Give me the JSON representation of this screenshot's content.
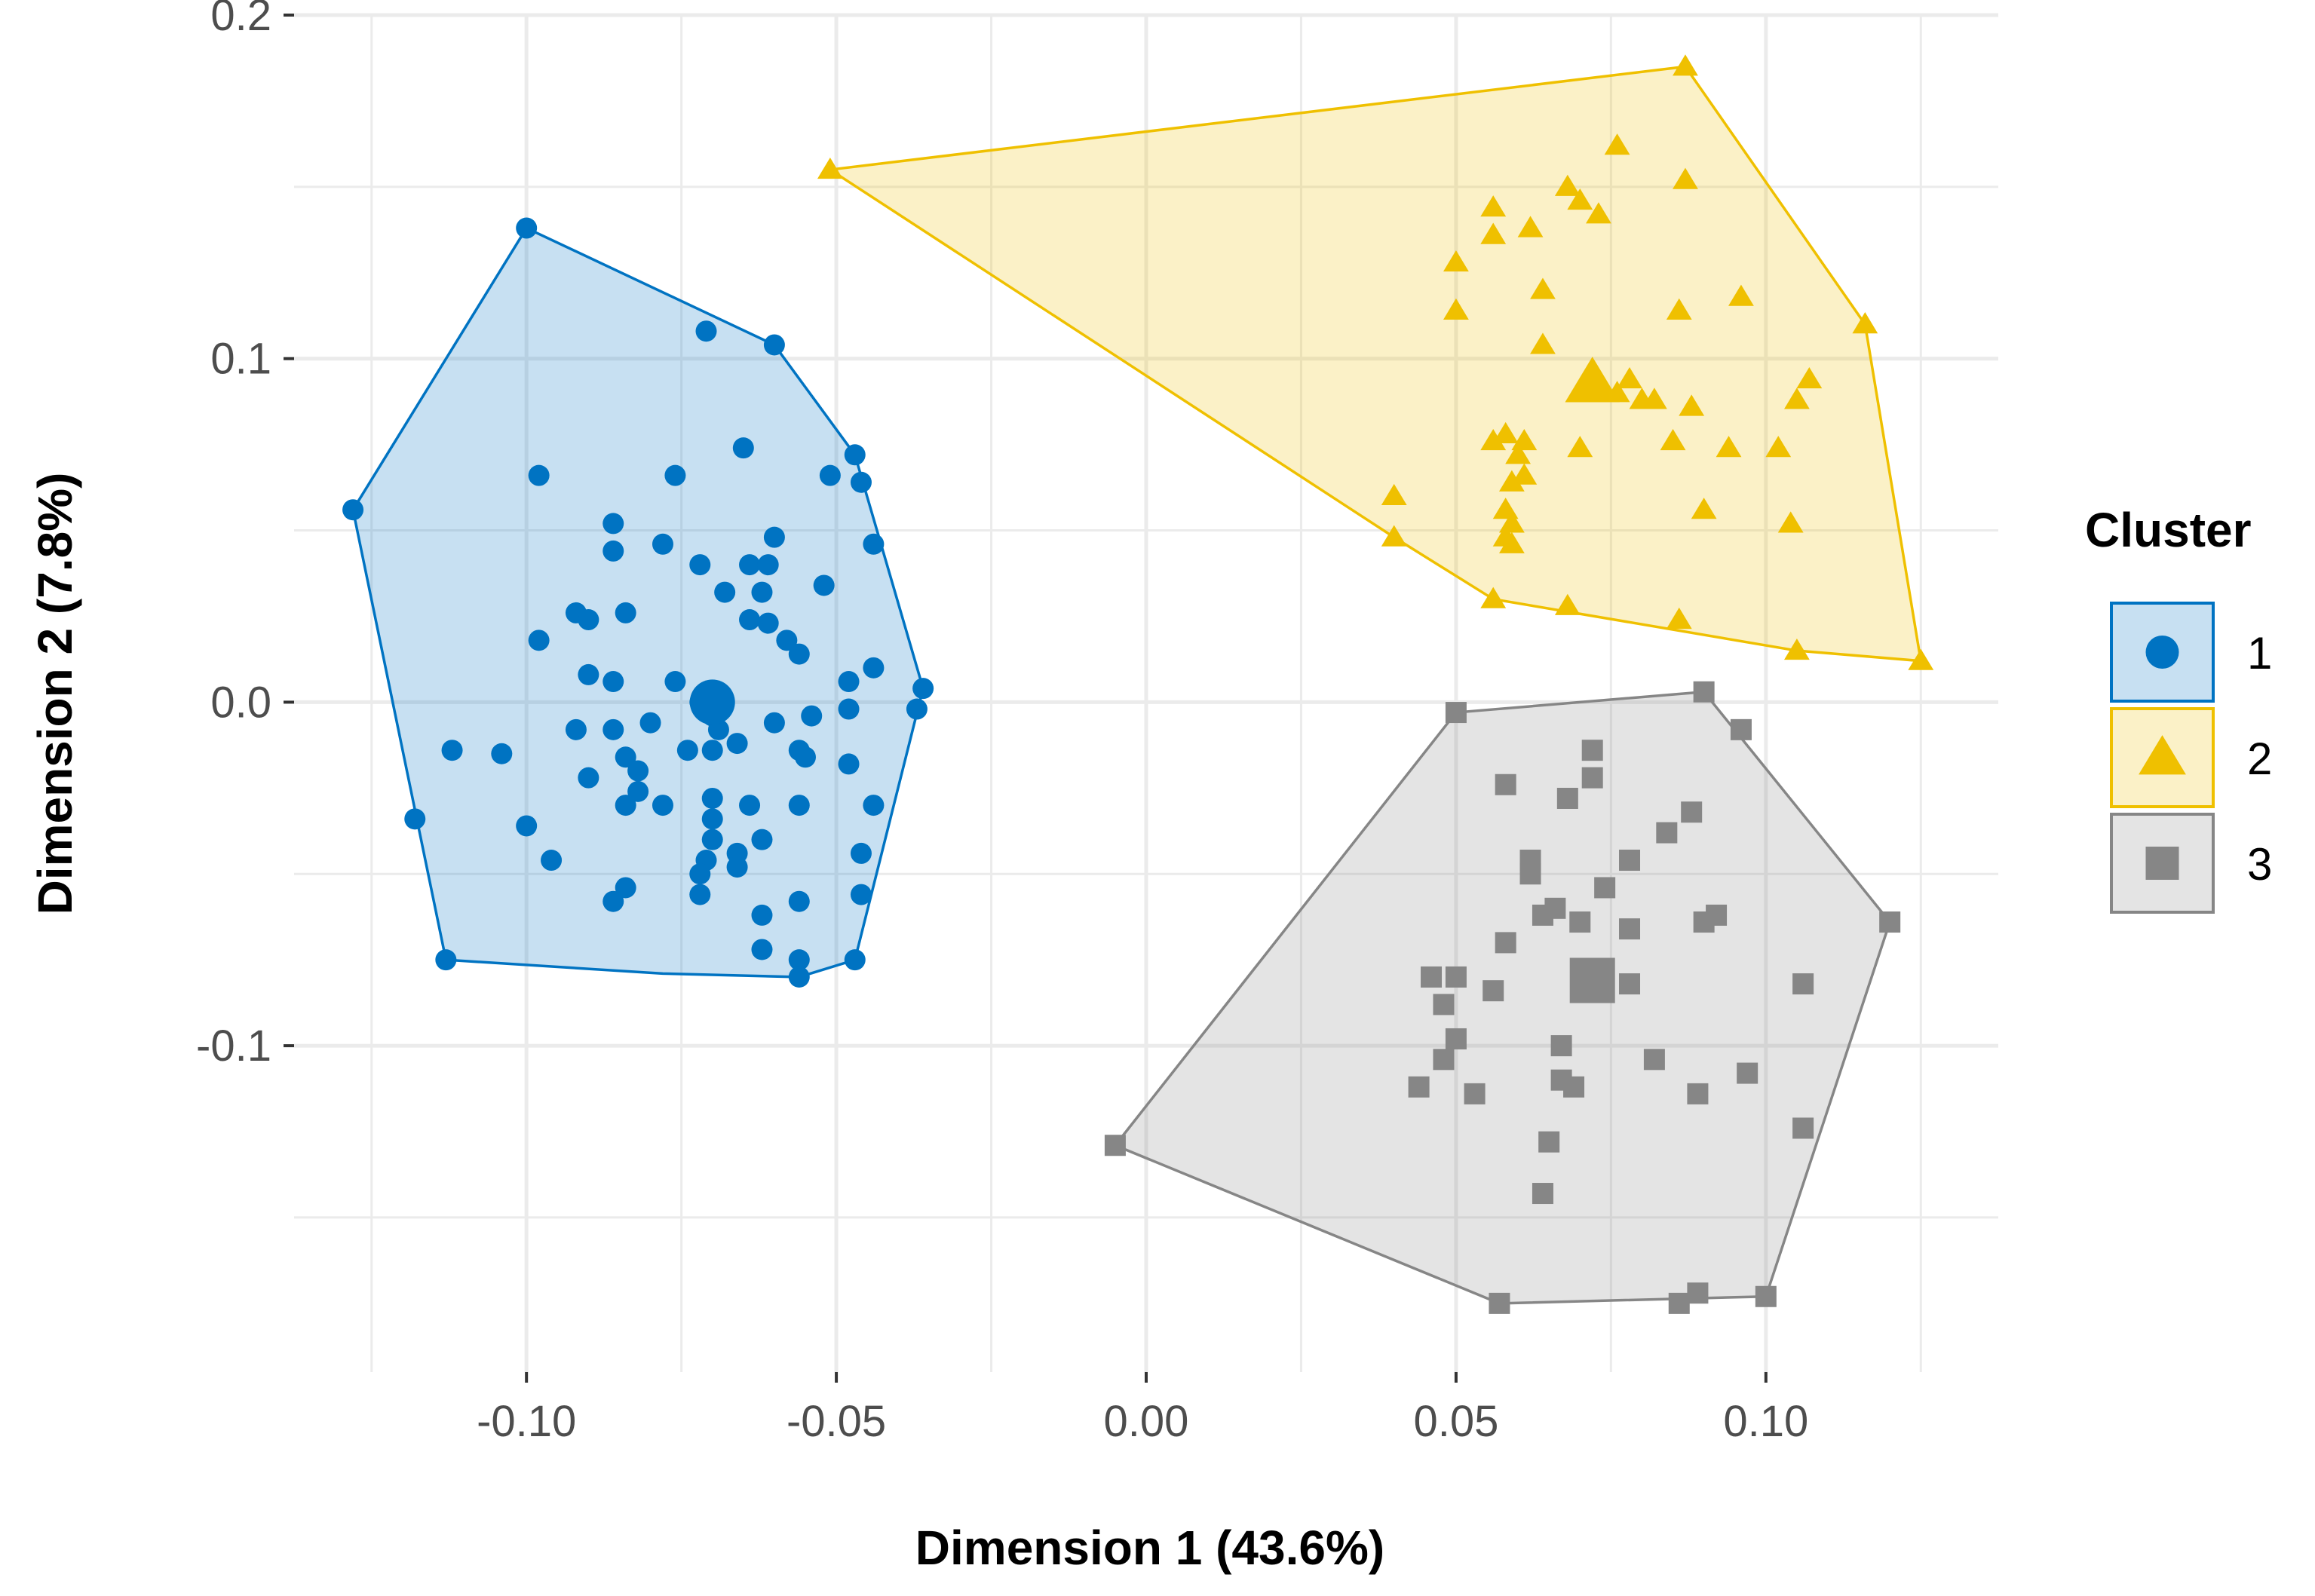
{
  "chart_data": {
    "type": "scatter",
    "title": "",
    "xlabel": "Dimension 1 (43.6%)",
    "ylabel": "Dimension 2 (7.8%)",
    "xlim": [
      -0.1375,
      0.1375
    ],
    "ylim": [
      -0.195,
      0.2
    ],
    "x_ticks": [
      -0.1,
      -0.05,
      0.0,
      0.05,
      0.1
    ],
    "x_tick_labels": [
      "-0.10",
      "-0.05",
      "0.00",
      "0.05",
      "0.10"
    ],
    "y_ticks": [
      -0.1,
      0.0,
      0.1,
      0.2
    ],
    "y_tick_labels": [
      "-0.1",
      "0.0",
      "0.1",
      "0.2"
    ],
    "grid": true,
    "legend": {
      "title": "Cluster",
      "position": "right"
    },
    "series": [
      {
        "name": "1",
        "color": "#0073C2",
        "fill": "#0073C2",
        "shape": "circle",
        "hull": [
          [
            -0.128,
            0.056
          ],
          [
            -0.1,
            0.138
          ],
          [
            -0.06,
            0.104
          ],
          [
            -0.047,
            0.072
          ],
          [
            -0.036,
            0.004
          ],
          [
            -0.047,
            -0.075
          ],
          [
            -0.056,
            -0.08
          ],
          [
            -0.078,
            -0.079
          ],
          [
            -0.113,
            -0.075
          ]
        ],
        "center": [
          -0.07,
          0.0
        ],
        "points": [
          [
            -0.128,
            0.056
          ],
          [
            -0.1,
            0.138
          ],
          [
            -0.06,
            0.104
          ],
          [
            -0.071,
            0.108
          ],
          [
            -0.047,
            0.072
          ],
          [
            -0.051,
            0.066
          ],
          [
            -0.046,
            0.064
          ],
          [
            -0.065,
            0.074
          ],
          [
            -0.076,
            0.066
          ],
          [
            -0.098,
            0.066
          ],
          [
            -0.086,
            0.052
          ],
          [
            -0.086,
            0.044
          ],
          [
            -0.078,
            0.046
          ],
          [
            -0.064,
            0.04
          ],
          [
            -0.06,
            0.048
          ],
          [
            -0.061,
            0.04
          ],
          [
            -0.068,
            0.032
          ],
          [
            -0.072,
            0.04
          ],
          [
            -0.062,
            0.032
          ],
          [
            -0.052,
            0.034
          ],
          [
            -0.044,
            0.046
          ],
          [
            -0.092,
            0.026
          ],
          [
            -0.09,
            0.024
          ],
          [
            -0.084,
            0.026
          ],
          [
            -0.064,
            0.024
          ],
          [
            -0.058,
            0.018
          ],
          [
            -0.061,
            0.023
          ],
          [
            -0.098,
            0.018
          ],
          [
            -0.056,
            0.014
          ],
          [
            -0.09,
            0.008
          ],
          [
            -0.086,
            0.006
          ],
          [
            -0.076,
            0.006
          ],
          [
            -0.048,
            0.006
          ],
          [
            -0.044,
            0.01
          ],
          [
            -0.036,
            0.004
          ],
          [
            -0.037,
            -0.002
          ],
          [
            -0.048,
            -0.002
          ],
          [
            -0.054,
            -0.004
          ],
          [
            -0.06,
            -0.006
          ],
          [
            -0.092,
            -0.008
          ],
          [
            -0.086,
            -0.008
          ],
          [
            -0.08,
            -0.006
          ],
          [
            -0.072,
            0.0
          ],
          [
            -0.07,
            -0.004
          ],
          [
            -0.069,
            -0.008
          ],
          [
            -0.066,
            -0.012
          ],
          [
            -0.07,
            -0.014
          ],
          [
            -0.074,
            -0.014
          ],
          [
            -0.056,
            -0.014
          ],
          [
            -0.048,
            -0.018
          ],
          [
            -0.055,
            -0.016
          ],
          [
            -0.112,
            -0.014
          ],
          [
            -0.104,
            -0.015
          ],
          [
            -0.084,
            -0.016
          ],
          [
            -0.082,
            -0.02
          ],
          [
            -0.09,
            -0.022
          ],
          [
            -0.082,
            -0.026
          ],
          [
            -0.084,
            -0.03
          ],
          [
            -0.078,
            -0.03
          ],
          [
            -0.07,
            -0.028
          ],
          [
            -0.07,
            -0.034
          ],
          [
            -0.064,
            -0.03
          ],
          [
            -0.056,
            -0.03
          ],
          [
            -0.044,
            -0.03
          ],
          [
            -0.118,
            -0.034
          ],
          [
            -0.1,
            -0.036
          ],
          [
            -0.062,
            -0.04
          ],
          [
            -0.07,
            -0.04
          ],
          [
            -0.066,
            -0.044
          ],
          [
            -0.071,
            -0.046
          ],
          [
            -0.072,
            -0.05
          ],
          [
            -0.096,
            -0.046
          ],
          [
            -0.046,
            -0.044
          ],
          [
            -0.066,
            -0.048
          ],
          [
            -0.084,
            -0.054
          ],
          [
            -0.086,
            -0.058
          ],
          [
            -0.072,
            -0.056
          ],
          [
            -0.056,
            -0.058
          ],
          [
            -0.046,
            -0.056
          ],
          [
            -0.062,
            -0.062
          ],
          [
            -0.062,
            -0.072
          ],
          [
            -0.047,
            -0.075
          ],
          [
            -0.056,
            -0.075
          ],
          [
            -0.056,
            -0.08
          ],
          [
            -0.113,
            -0.075
          ]
        ]
      },
      {
        "name": "2",
        "color": "#EFC000",
        "fill": "#EFC000",
        "shape": "triangle",
        "hull": [
          [
            -0.051,
            0.155
          ],
          [
            0.087,
            0.185
          ],
          [
            0.116,
            0.11
          ],
          [
            0.125,
            0.012
          ],
          [
            0.105,
            0.015
          ],
          [
            0.056,
            0.03
          ],
          [
            0.04,
            0.048
          ]
        ],
        "center": [
          0.072,
          0.093
        ],
        "points": [
          [
            -0.051,
            0.155
          ],
          [
            0.087,
            0.185
          ],
          [
            0.076,
            0.162
          ],
          [
            0.087,
            0.152
          ],
          [
            0.068,
            0.15
          ],
          [
            0.07,
            0.146
          ],
          [
            0.073,
            0.142
          ],
          [
            0.056,
            0.144
          ],
          [
            0.062,
            0.138
          ],
          [
            0.056,
            0.136
          ],
          [
            0.05,
            0.128
          ],
          [
            0.064,
            0.12
          ],
          [
            0.05,
            0.114
          ],
          [
            0.086,
            0.114
          ],
          [
            0.096,
            0.118
          ],
          [
            0.116,
            0.11
          ],
          [
            0.064,
            0.104
          ],
          [
            0.078,
            0.094
          ],
          [
            0.08,
            0.088
          ],
          [
            0.076,
            0.09
          ],
          [
            0.107,
            0.094
          ],
          [
            0.105,
            0.088
          ],
          [
            0.088,
            0.086
          ],
          [
            0.082,
            0.088
          ],
          [
            0.058,
            0.078
          ],
          [
            0.056,
            0.076
          ],
          [
            0.061,
            0.076
          ],
          [
            0.06,
            0.072
          ],
          [
            0.07,
            0.074
          ],
          [
            0.085,
            0.076
          ],
          [
            0.094,
            0.074
          ],
          [
            0.102,
            0.074
          ],
          [
            0.061,
            0.066
          ],
          [
            0.059,
            0.064
          ],
          [
            0.058,
            0.056
          ],
          [
            0.09,
            0.056
          ],
          [
            0.04,
            0.06
          ],
          [
            0.059,
            0.052
          ],
          [
            0.059,
            0.046
          ],
          [
            0.058,
            0.048
          ],
          [
            0.104,
            0.052
          ],
          [
            0.04,
            0.048
          ],
          [
            0.056,
            0.03
          ],
          [
            0.068,
            0.028
          ],
          [
            0.086,
            0.024
          ],
          [
            0.105,
            0.015
          ],
          [
            0.125,
            0.012
          ]
        ]
      },
      {
        "name": "3",
        "color": "#868686",
        "fill": "#868686",
        "shape": "square",
        "hull": [
          [
            0.05,
            -0.003
          ],
          [
            0.09,
            0.003
          ],
          [
            0.12,
            -0.064
          ],
          [
            0.1,
            -0.173
          ],
          [
            0.057,
            -0.175
          ],
          [
            -0.005,
            -0.129
          ]
        ],
        "center": [
          0.072,
          -0.081
        ],
        "points": [
          [
            0.05,
            -0.003
          ],
          [
            0.09,
            0.003
          ],
          [
            0.096,
            -0.008
          ],
          [
            0.072,
            -0.014
          ],
          [
            0.072,
            -0.022
          ],
          [
            0.058,
            -0.024
          ],
          [
            0.068,
            -0.028
          ],
          [
            0.088,
            -0.032
          ],
          [
            0.084,
            -0.038
          ],
          [
            0.062,
            -0.046
          ],
          [
            0.062,
            -0.05
          ],
          [
            0.078,
            -0.046
          ],
          [
            0.074,
            -0.054
          ],
          [
            0.066,
            -0.06
          ],
          [
            0.064,
            -0.062
          ],
          [
            0.07,
            -0.064
          ],
          [
            0.092,
            -0.062
          ],
          [
            0.09,
            -0.064
          ],
          [
            0.078,
            -0.066
          ],
          [
            0.058,
            -0.07
          ],
          [
            0.12,
            -0.064
          ],
          [
            0.046,
            -0.08
          ],
          [
            0.05,
            -0.08
          ],
          [
            0.056,
            -0.084
          ],
          [
            0.048,
            -0.088
          ],
          [
            0.078,
            -0.082
          ],
          [
            0.106,
            -0.082
          ],
          [
            0.05,
            -0.098
          ],
          [
            0.067,
            -0.1
          ],
          [
            0.048,
            -0.104
          ],
          [
            0.082,
            -0.104
          ],
          [
            0.097,
            -0.108
          ],
          [
            0.067,
            -0.11
          ],
          [
            0.069,
            -0.112
          ],
          [
            0.053,
            -0.114
          ],
          [
            0.044,
            -0.112
          ],
          [
            0.089,
            -0.114
          ],
          [
            0.106,
            -0.124
          ],
          [
            0.065,
            -0.128
          ],
          [
            0.064,
            -0.143
          ],
          [
            -0.005,
            -0.129
          ],
          [
            0.057,
            -0.175
          ],
          [
            0.086,
            -0.175
          ],
          [
            0.089,
            -0.172
          ],
          [
            0.1,
            -0.173
          ]
        ]
      }
    ]
  }
}
